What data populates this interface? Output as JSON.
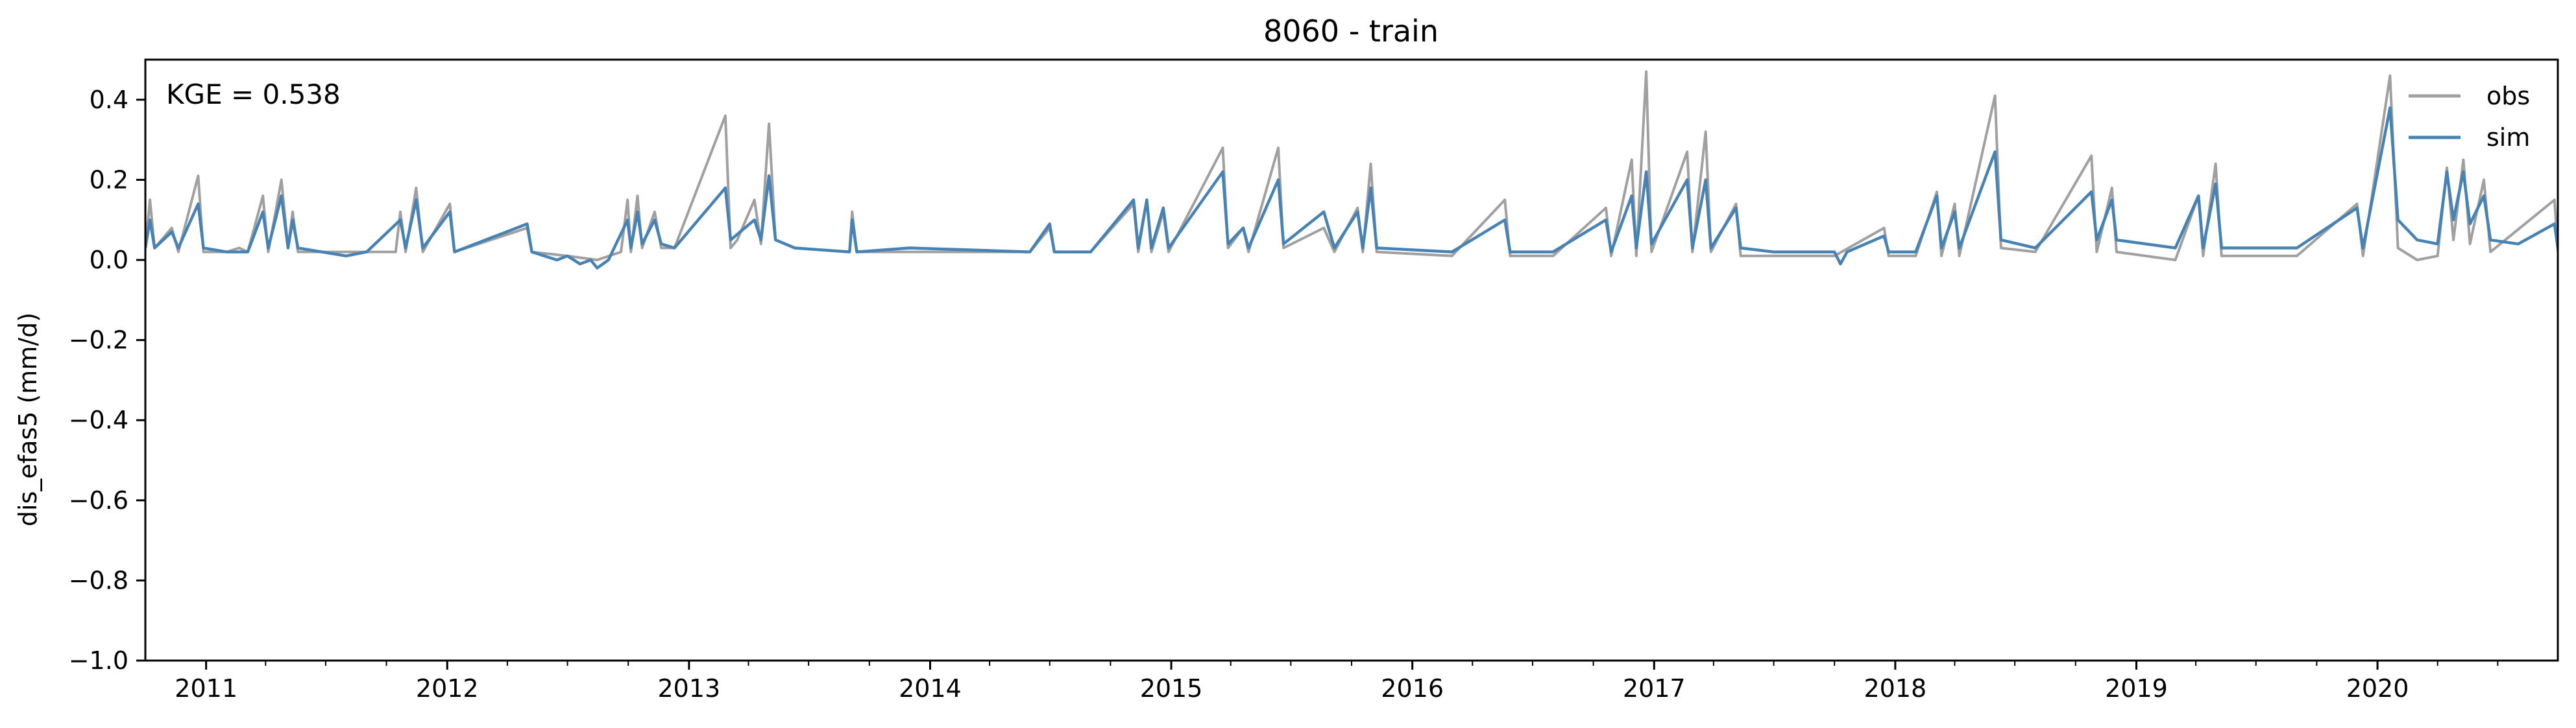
{
  "chart_data": {
    "type": "line",
    "title": "8060 - train",
    "xlabel": "",
    "ylabel": "dis_efas5 (mm/d)",
    "ylim": [
      -1.0,
      0.5
    ],
    "xlim": [
      "2010-10-01",
      "2020-09-30"
    ],
    "yticks": [
      0.4,
      0.2,
      0.0,
      -0.2,
      -0.4,
      -0.6,
      -0.8,
      -1.0
    ],
    "ytick_labels": [
      "0.4",
      "0.2",
      "0.0",
      "−0.2",
      "−0.4",
      "−0.6",
      "−0.8",
      "−1.0"
    ],
    "xticks": [
      "2011-01-01",
      "2012-01-01",
      "2013-01-01",
      "2014-01-01",
      "2015-01-01",
      "2016-01-01",
      "2017-01-01",
      "2018-01-01",
      "2019-01-01",
      "2020-01-01"
    ],
    "xtick_labels": [
      "2011",
      "2012",
      "2013",
      "2014",
      "2015",
      "2016",
      "2017",
      "2018",
      "2019",
      "2020"
    ],
    "grid": false,
    "legend_position": "top-right",
    "annotation": "KGE = 0.538",
    "series": [
      {
        "name": "obs",
        "color": "#a0a0a0",
        "points": [
          [
            "2010-10-01",
            0.03
          ],
          [
            "2010-10-08",
            0.15
          ],
          [
            "2010-10-15",
            0.03
          ],
          [
            "2010-11-10",
            0.08
          ],
          [
            "2010-11-20",
            0.02
          ],
          [
            "2010-12-20",
            0.21
          ],
          [
            "2010-12-28",
            0.02
          ],
          [
            "2011-02-01",
            0.02
          ],
          [
            "2011-02-20",
            0.03
          ],
          [
            "2011-03-05",
            0.02
          ],
          [
            "2011-03-28",
            0.16
          ],
          [
            "2011-04-05",
            0.02
          ],
          [
            "2011-04-25",
            0.2
          ],
          [
            "2011-05-05",
            0.03
          ],
          [
            "2011-05-12",
            0.12
          ],
          [
            "2011-05-20",
            0.02
          ],
          [
            "2011-08-01",
            0.02
          ],
          [
            "2011-10-15",
            0.02
          ],
          [
            "2011-10-22",
            0.12
          ],
          [
            "2011-10-30",
            0.02
          ],
          [
            "2011-11-15",
            0.18
          ],
          [
            "2011-11-25",
            0.02
          ],
          [
            "2012-01-05",
            0.14
          ],
          [
            "2012-01-12",
            0.02
          ],
          [
            "2012-05-01",
            0.08
          ],
          [
            "2012-05-08",
            0.02
          ],
          [
            "2012-07-01",
            0.01
          ],
          [
            "2012-08-15",
            0.0
          ],
          [
            "2012-09-20",
            0.02
          ],
          [
            "2012-09-30",
            0.15
          ],
          [
            "2012-10-05",
            0.02
          ],
          [
            "2012-10-15",
            0.16
          ],
          [
            "2012-10-22",
            0.03
          ],
          [
            "2012-11-10",
            0.12
          ],
          [
            "2012-11-20",
            0.03
          ],
          [
            "2012-12-10",
            0.03
          ],
          [
            "2013-02-25",
            0.36
          ],
          [
            "2013-03-05",
            0.03
          ],
          [
            "2013-03-15",
            0.05
          ],
          [
            "2013-04-10",
            0.15
          ],
          [
            "2013-04-20",
            0.04
          ],
          [
            "2013-05-02",
            0.34
          ],
          [
            "2013-05-12",
            0.05
          ],
          [
            "2013-06-10",
            0.03
          ],
          [
            "2013-09-01",
            0.02
          ],
          [
            "2013-09-05",
            0.12
          ],
          [
            "2013-09-12",
            0.02
          ],
          [
            "2013-12-01",
            0.02
          ],
          [
            "2014-06-01",
            0.02
          ],
          [
            "2014-07-01",
            0.08
          ],
          [
            "2014-07-08",
            0.02
          ],
          [
            "2014-09-01",
            0.02
          ],
          [
            "2014-11-05",
            0.14
          ],
          [
            "2014-11-12",
            0.02
          ],
          [
            "2014-11-25",
            0.15
          ],
          [
            "2014-12-02",
            0.02
          ],
          [
            "2014-12-20",
            0.12
          ],
          [
            "2014-12-28",
            0.02
          ],
          [
            "2015-03-20",
            0.28
          ],
          [
            "2015-03-28",
            0.03
          ],
          [
            "2015-04-20",
            0.08
          ],
          [
            "2015-04-28",
            0.02
          ],
          [
            "2015-06-12",
            0.28
          ],
          [
            "2015-06-20",
            0.03
          ],
          [
            "2015-08-20",
            0.08
          ],
          [
            "2015-09-05",
            0.02
          ],
          [
            "2015-10-10",
            0.13
          ],
          [
            "2015-10-18",
            0.02
          ],
          [
            "2015-10-30",
            0.24
          ],
          [
            "2015-11-08",
            0.02
          ],
          [
            "2016-03-01",
            0.01
          ],
          [
            "2016-05-20",
            0.15
          ],
          [
            "2016-05-28",
            0.01
          ],
          [
            "2016-08-01",
            0.01
          ],
          [
            "2016-10-20",
            0.13
          ],
          [
            "2016-10-28",
            0.01
          ],
          [
            "2016-11-28",
            0.25
          ],
          [
            "2016-12-05",
            0.01
          ],
          [
            "2016-12-20",
            0.47
          ],
          [
            "2016-12-28",
            0.02
          ],
          [
            "2017-02-20",
            0.27
          ],
          [
            "2017-02-28",
            0.02
          ],
          [
            "2017-03-20",
            0.32
          ],
          [
            "2017-03-28",
            0.02
          ],
          [
            "2017-05-05",
            0.14
          ],
          [
            "2017-05-12",
            0.01
          ],
          [
            "2017-07-01",
            0.01
          ],
          [
            "2017-10-01",
            0.01
          ],
          [
            "2017-12-15",
            0.08
          ],
          [
            "2017-12-22",
            0.01
          ],
          [
            "2018-02-01",
            0.01
          ],
          [
            "2018-03-05",
            0.17
          ],
          [
            "2018-03-12",
            0.01
          ],
          [
            "2018-04-01",
            0.14
          ],
          [
            "2018-04-08",
            0.01
          ],
          [
            "2018-06-01",
            0.41
          ],
          [
            "2018-06-10",
            0.03
          ],
          [
            "2018-08-01",
            0.02
          ],
          [
            "2018-10-25",
            0.26
          ],
          [
            "2018-11-02",
            0.02
          ],
          [
            "2018-11-25",
            0.18
          ],
          [
            "2018-12-02",
            0.02
          ],
          [
            "2019-03-01",
            0.0
          ],
          [
            "2019-04-05",
            0.16
          ],
          [
            "2019-04-12",
            0.01
          ],
          [
            "2019-05-01",
            0.24
          ],
          [
            "2019-05-10",
            0.01
          ],
          [
            "2019-07-01",
            0.01
          ],
          [
            "2019-09-01",
            0.01
          ],
          [
            "2019-12-01",
            0.14
          ],
          [
            "2019-12-10",
            0.01
          ],
          [
            "2020-01-20",
            0.46
          ],
          [
            "2020-02-01",
            0.03
          ],
          [
            "2020-03-01",
            0.0
          ],
          [
            "2020-04-01",
            0.01
          ],
          [
            "2020-04-15",
            0.23
          ],
          [
            "2020-04-25",
            0.05
          ],
          [
            "2020-05-10",
            0.25
          ],
          [
            "2020-05-20",
            0.04
          ],
          [
            "2020-06-10",
            0.2
          ],
          [
            "2020-06-20",
            0.02
          ],
          [
            "2020-09-25",
            0.15
          ],
          [
            "2020-09-30",
            0.02
          ]
        ]
      },
      {
        "name": "sim",
        "color": "#4682b4",
        "points": [
          [
            "2010-10-01",
            0.03
          ],
          [
            "2010-10-08",
            0.1
          ],
          [
            "2010-10-15",
            0.03
          ],
          [
            "2010-11-10",
            0.07
          ],
          [
            "2010-11-20",
            0.03
          ],
          [
            "2010-12-20",
            0.14
          ],
          [
            "2010-12-28",
            0.03
          ],
          [
            "2011-02-01",
            0.02
          ],
          [
            "2011-03-05",
            0.02
          ],
          [
            "2011-03-28",
            0.12
          ],
          [
            "2011-04-05",
            0.03
          ],
          [
            "2011-04-25",
            0.16
          ],
          [
            "2011-05-05",
            0.03
          ],
          [
            "2011-05-12",
            0.1
          ],
          [
            "2011-05-20",
            0.03
          ],
          [
            "2011-08-01",
            0.01
          ],
          [
            "2011-09-01",
            0.02
          ],
          [
            "2011-10-22",
            0.1
          ],
          [
            "2011-10-30",
            0.03
          ],
          [
            "2011-11-15",
            0.15
          ],
          [
            "2011-11-25",
            0.03
          ],
          [
            "2012-01-05",
            0.12
          ],
          [
            "2012-01-12",
            0.02
          ],
          [
            "2012-05-01",
            0.09
          ],
          [
            "2012-05-08",
            0.02
          ],
          [
            "2012-06-15",
            0.0
          ],
          [
            "2012-07-01",
            0.01
          ],
          [
            "2012-07-20",
            -0.01
          ],
          [
            "2012-08-05",
            0.0
          ],
          [
            "2012-08-15",
            -0.02
          ],
          [
            "2012-09-01",
            0.0
          ],
          [
            "2012-09-30",
            0.1
          ],
          [
            "2012-10-05",
            0.03
          ],
          [
            "2012-10-15",
            0.12
          ],
          [
            "2012-10-22",
            0.04
          ],
          [
            "2012-11-10",
            0.1
          ],
          [
            "2012-11-20",
            0.04
          ],
          [
            "2012-12-10",
            0.03
          ],
          [
            "2013-02-25",
            0.18
          ],
          [
            "2013-03-05",
            0.05
          ],
          [
            "2013-04-10",
            0.1
          ],
          [
            "2013-04-20",
            0.05
          ],
          [
            "2013-05-02",
            0.21
          ],
          [
            "2013-05-12",
            0.05
          ],
          [
            "2013-06-10",
            0.03
          ],
          [
            "2013-09-01",
            0.02
          ],
          [
            "2013-09-05",
            0.1
          ],
          [
            "2013-09-12",
            0.02
          ],
          [
            "2013-12-01",
            0.03
          ],
          [
            "2014-06-01",
            0.02
          ],
          [
            "2014-07-01",
            0.09
          ],
          [
            "2014-07-08",
            0.02
          ],
          [
            "2014-09-01",
            0.02
          ],
          [
            "2014-11-05",
            0.15
          ],
          [
            "2014-11-12",
            0.03
          ],
          [
            "2014-11-25",
            0.15
          ],
          [
            "2014-12-02",
            0.03
          ],
          [
            "2014-12-20",
            0.13
          ],
          [
            "2014-12-28",
            0.03
          ],
          [
            "2015-03-20",
            0.22
          ],
          [
            "2015-03-28",
            0.04
          ],
          [
            "2015-04-20",
            0.08
          ],
          [
            "2015-04-28",
            0.03
          ],
          [
            "2015-06-12",
            0.2
          ],
          [
            "2015-06-20",
            0.04
          ],
          [
            "2015-08-20",
            0.12
          ],
          [
            "2015-09-05",
            0.03
          ],
          [
            "2015-10-10",
            0.12
          ],
          [
            "2015-10-18",
            0.03
          ],
          [
            "2015-10-30",
            0.18
          ],
          [
            "2015-11-08",
            0.03
          ],
          [
            "2016-03-01",
            0.02
          ],
          [
            "2016-05-20",
            0.1
          ],
          [
            "2016-05-28",
            0.02
          ],
          [
            "2016-08-01",
            0.02
          ],
          [
            "2016-10-20",
            0.1
          ],
          [
            "2016-10-28",
            0.02
          ],
          [
            "2016-11-28",
            0.16
          ],
          [
            "2016-12-05",
            0.03
          ],
          [
            "2016-12-20",
            0.22
          ],
          [
            "2016-12-28",
            0.04
          ],
          [
            "2017-02-20",
            0.2
          ],
          [
            "2017-02-28",
            0.03
          ],
          [
            "2017-03-20",
            0.2
          ],
          [
            "2017-03-28",
            0.03
          ],
          [
            "2017-05-05",
            0.13
          ],
          [
            "2017-05-12",
            0.03
          ],
          [
            "2017-07-01",
            0.02
          ],
          [
            "2017-10-01",
            0.02
          ],
          [
            "2017-10-10",
            -0.01
          ],
          [
            "2017-10-20",
            0.02
          ],
          [
            "2017-12-15",
            0.06
          ],
          [
            "2017-12-22",
            0.02
          ],
          [
            "2018-02-01",
            0.02
          ],
          [
            "2018-03-05",
            0.16
          ],
          [
            "2018-03-12",
            0.03
          ],
          [
            "2018-04-01",
            0.12
          ],
          [
            "2018-04-08",
            0.03
          ],
          [
            "2018-06-01",
            0.27
          ],
          [
            "2018-06-10",
            0.05
          ],
          [
            "2018-08-01",
            0.03
          ],
          [
            "2018-10-25",
            0.17
          ],
          [
            "2018-11-02",
            0.05
          ],
          [
            "2018-11-25",
            0.15
          ],
          [
            "2018-12-02",
            0.05
          ],
          [
            "2019-03-01",
            0.03
          ],
          [
            "2019-04-05",
            0.16
          ],
          [
            "2019-04-12",
            0.03
          ],
          [
            "2019-05-01",
            0.19
          ],
          [
            "2019-05-10",
            0.03
          ],
          [
            "2019-07-01",
            0.03
          ],
          [
            "2019-09-01",
            0.03
          ],
          [
            "2019-12-01",
            0.13
          ],
          [
            "2019-12-10",
            0.03
          ],
          [
            "2020-01-20",
            0.38
          ],
          [
            "2020-02-01",
            0.1
          ],
          [
            "2020-03-01",
            0.05
          ],
          [
            "2020-04-01",
            0.04
          ],
          [
            "2020-04-15",
            0.22
          ],
          [
            "2020-04-25",
            0.1
          ],
          [
            "2020-05-10",
            0.22
          ],
          [
            "2020-05-20",
            0.09
          ],
          [
            "2020-06-10",
            0.16
          ],
          [
            "2020-06-20",
            0.05
          ],
          [
            "2020-08-01",
            0.04
          ],
          [
            "2020-09-25",
            0.09
          ],
          [
            "2020-09-30",
            0.03
          ]
        ]
      }
    ]
  }
}
